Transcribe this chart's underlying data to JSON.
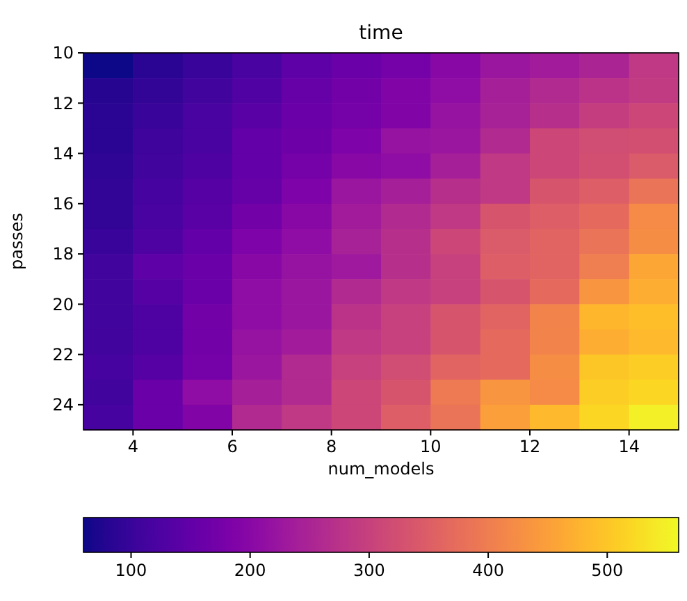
{
  "chart_data": {
    "type": "heatmap",
    "title": "time",
    "xlabel": "num_models",
    "ylabel": "passes",
    "x": [
      3.5,
      4.5,
      5.5,
      6.5,
      7.5,
      8.5,
      9.5,
      10.5,
      11.5,
      12.5,
      13.5,
      14.5
    ],
    "y": [
      10.5,
      11.5,
      12.5,
      13.5,
      14.5,
      15.5,
      16.5,
      17.5,
      18.5,
      19.5,
      20.5,
      21.5,
      22.5,
      23.5,
      24.5
    ],
    "xlim": [
      3,
      15
    ],
    "xticks": [
      4,
      6,
      8,
      10,
      12,
      14
    ],
    "ylim": [
      25,
      10
    ],
    "yticks": [
      10,
      12,
      14,
      16,
      18,
      20,
      22,
      24
    ],
    "cells": [
      [
        60,
        85,
        100,
        120,
        145,
        160,
        175,
        200,
        225,
        235,
        250,
        285
      ],
      [
        80,
        95,
        110,
        130,
        155,
        170,
        190,
        210,
        240,
        260,
        275,
        290
      ],
      [
        85,
        100,
        120,
        140,
        160,
        175,
        190,
        220,
        245,
        270,
        295,
        310
      ],
      [
        85,
        105,
        120,
        150,
        165,
        185,
        220,
        225,
        260,
        310,
        320,
        325
      ],
      [
        90,
        110,
        125,
        150,
        175,
        200,
        210,
        240,
        285,
        310,
        325,
        345
      ],
      [
        95,
        115,
        135,
        155,
        185,
        225,
        240,
        270,
        285,
        335,
        350,
        385
      ],
      [
        95,
        120,
        140,
        170,
        200,
        235,
        260,
        285,
        335,
        350,
        370,
        420
      ],
      [
        100,
        125,
        150,
        185,
        210,
        245,
        270,
        310,
        345,
        360,
        385,
        425
      ],
      [
        110,
        145,
        160,
        200,
        220,
        230,
        270,
        300,
        350,
        360,
        400,
        460
      ],
      [
        110,
        135,
        160,
        210,
        225,
        260,
        285,
        300,
        335,
        370,
        435,
        470
      ],
      [
        110,
        125,
        170,
        210,
        225,
        275,
        300,
        335,
        360,
        410,
        480,
        490
      ],
      [
        110,
        125,
        170,
        220,
        235,
        285,
        300,
        335,
        370,
        410,
        470,
        485
      ],
      [
        115,
        135,
        175,
        225,
        260,
        300,
        320,
        360,
        370,
        425,
        500,
        510
      ],
      [
        110,
        160,
        210,
        240,
        260,
        310,
        335,
        395,
        435,
        420,
        510,
        520
      ],
      [
        115,
        160,
        190,
        260,
        285,
        310,
        350,
        385,
        450,
        485,
        520,
        550
      ]
    ],
    "clim": [
      60,
      560
    ],
    "cticks": [
      100,
      200,
      300,
      400,
      500
    ]
  }
}
